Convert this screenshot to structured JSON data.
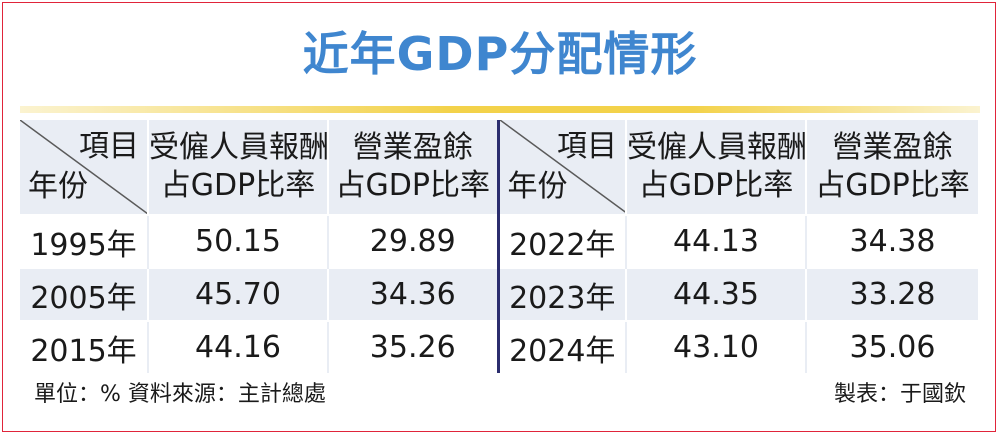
{
  "title": "近年GDP分配情形",
  "header": {
    "corner_top": "項目",
    "corner_bottom": "年份",
    "col1_line1": "受僱人員報酬",
    "col1_line2": "占GDP比率",
    "col2_line1": "營業盈餘",
    "col2_line2": "占GDP比率"
  },
  "chart_data": {
    "type": "table",
    "title": "近年GDP分配情形",
    "columns": [
      "年份",
      "受僱人員報酬占GDP比率",
      "營業盈餘占GDP比率"
    ],
    "rows": [
      {
        "year": "1995年",
        "compensation": "50.15",
        "surplus": "29.89"
      },
      {
        "year": "2005年",
        "compensation": "45.70",
        "surplus": "34.36"
      },
      {
        "year": "2015年",
        "compensation": "44.16",
        "surplus": "35.26"
      },
      {
        "year": "2022年",
        "compensation": "44.13",
        "surplus": "34.38"
      },
      {
        "year": "2023年",
        "compensation": "44.35",
        "surplus": "33.28"
      },
      {
        "year": "2024年",
        "compensation": "43.10",
        "surplus": "35.06"
      }
    ]
  },
  "footer": {
    "unit_source": "單位：%  資料來源：主計總處",
    "credit": "製表：于國欽"
  },
  "colors": {
    "title": "#3f86cf",
    "band": "#e9edf4",
    "divider": "#2b2d6e",
    "rule": "#f3d24a",
    "frame": "#e0243a"
  }
}
